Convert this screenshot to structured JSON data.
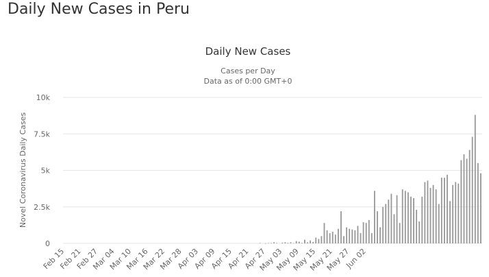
{
  "page_title": "Daily New Cases in Peru",
  "chart_data": {
    "type": "bar",
    "title": "Daily New Cases",
    "subtitles": [
      "Cases per Day",
      "Data as of 0:00 GMT+0"
    ],
    "ylabel": "Novel Coronavirus Daily Cases",
    "xlabel": "",
    "ylim": [
      0,
      10000
    ],
    "y_ticks": [
      0,
      2500,
      5000,
      7500,
      10000
    ],
    "y_tick_labels": [
      "0",
      "2.5k",
      "5k",
      "7.5k",
      "10k"
    ],
    "x_tick_labels": [
      "Feb 15",
      "Feb 21",
      "Feb 27",
      "Mar 04",
      "Mar 10",
      "Mar 16",
      "Mar 22",
      "Mar 28",
      "Apr 03",
      "Apr 09",
      "Apr 15",
      "Apr 21",
      "Apr 27",
      "May 03",
      "May 09",
      "May 15",
      "May 21",
      "May 27",
      "Jun 02"
    ],
    "start_date": "2020-02-15",
    "grid": true,
    "legend": "none",
    "bar_color": "#999999",
    "values": [
      0,
      0,
      0,
      0,
      0,
      0,
      0,
      0,
      0,
      0,
      0,
      0,
      0,
      0,
      0,
      0,
      0,
      0,
      0,
      0,
      0,
      0,
      0,
      0,
      0,
      0,
      0,
      0,
      0,
      0,
      0,
      0,
      0,
      0,
      0,
      0,
      0,
      0,
      0,
      0,
      0,
      0,
      0,
      0,
      0,
      0,
      0,
      0,
      0,
      0,
      0,
      0,
      0,
      0,
      0,
      0,
      0,
      0,
      0,
      0,
      0,
      0,
      0,
      0,
      0,
      0,
      0,
      0,
      0,
      0,
      30,
      0,
      10,
      20,
      30,
      80,
      30,
      0,
      50,
      80,
      40,
      80,
      20,
      160,
      120,
      40,
      250,
      80,
      200,
      100,
      400,
      300,
      500,
      1400,
      900,
      700,
      800,
      600,
      1000,
      2200,
      500,
      1100,
      1000,
      950,
      900,
      1200,
      700,
      1450,
      1400,
      1600,
      700,
      3600,
      2200,
      1100,
      2500,
      2700,
      3000,
      3400,
      2000,
      3300,
      1400,
      3700,
      3600,
      3500,
      3200,
      3100,
      2300,
      1500,
      3200,
      4200,
      4300,
      3800,
      4000,
      3700,
      2700,
      4500,
      4500,
      4700,
      2900,
      4000,
      4200,
      4100,
      5700,
      6100,
      5800,
      6400,
      7300,
      8800,
      5500,
      4800
    ]
  }
}
